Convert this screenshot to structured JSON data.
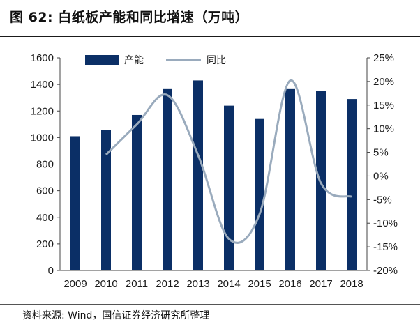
{
  "title": "图 62:  白纸板产能和同比增速（万吨）",
  "source": "资料来源: Wind，国信证券经济研究所整理",
  "colors": {
    "bar": "#0b2f66",
    "line": "#9aabbd",
    "axis": "#444444",
    "text": "#1a1a1a"
  },
  "chart_data": {
    "type": "bar",
    "categories": [
      "2009",
      "2010",
      "2011",
      "2012",
      "2013",
      "2014",
      "2015",
      "2016",
      "2017",
      "2018"
    ],
    "series": [
      {
        "name": "产能",
        "type": "bar",
        "axis": "left",
        "values": [
          1010,
          1055,
          1170,
          1370,
          1430,
          1240,
          1140,
          1370,
          1350,
          1290
        ]
      },
      {
        "name": "同比",
        "type": "line",
        "axis": "right",
        "unit": "%",
        "values": [
          null,
          4.5,
          10.9,
          17.1,
          4.4,
          -13.3,
          -8.1,
          20.2,
          -1.5,
          -4.4
        ]
      }
    ],
    "y_left": {
      "min": 0,
      "max": 1600,
      "ticks": [
        "0",
        "200",
        "400",
        "600",
        "800",
        "1000",
        "1200",
        "1400",
        "1600"
      ]
    },
    "y_right": {
      "min": -20,
      "max": 25,
      "ticks": [
        "-20%",
        "-15%",
        "-10%",
        "-5%",
        "0%",
        "5%",
        "10%",
        "15%",
        "20%",
        "25%"
      ]
    },
    "legend": {
      "position": "top",
      "items": [
        "产能",
        "同比"
      ]
    },
    "grid": false
  }
}
